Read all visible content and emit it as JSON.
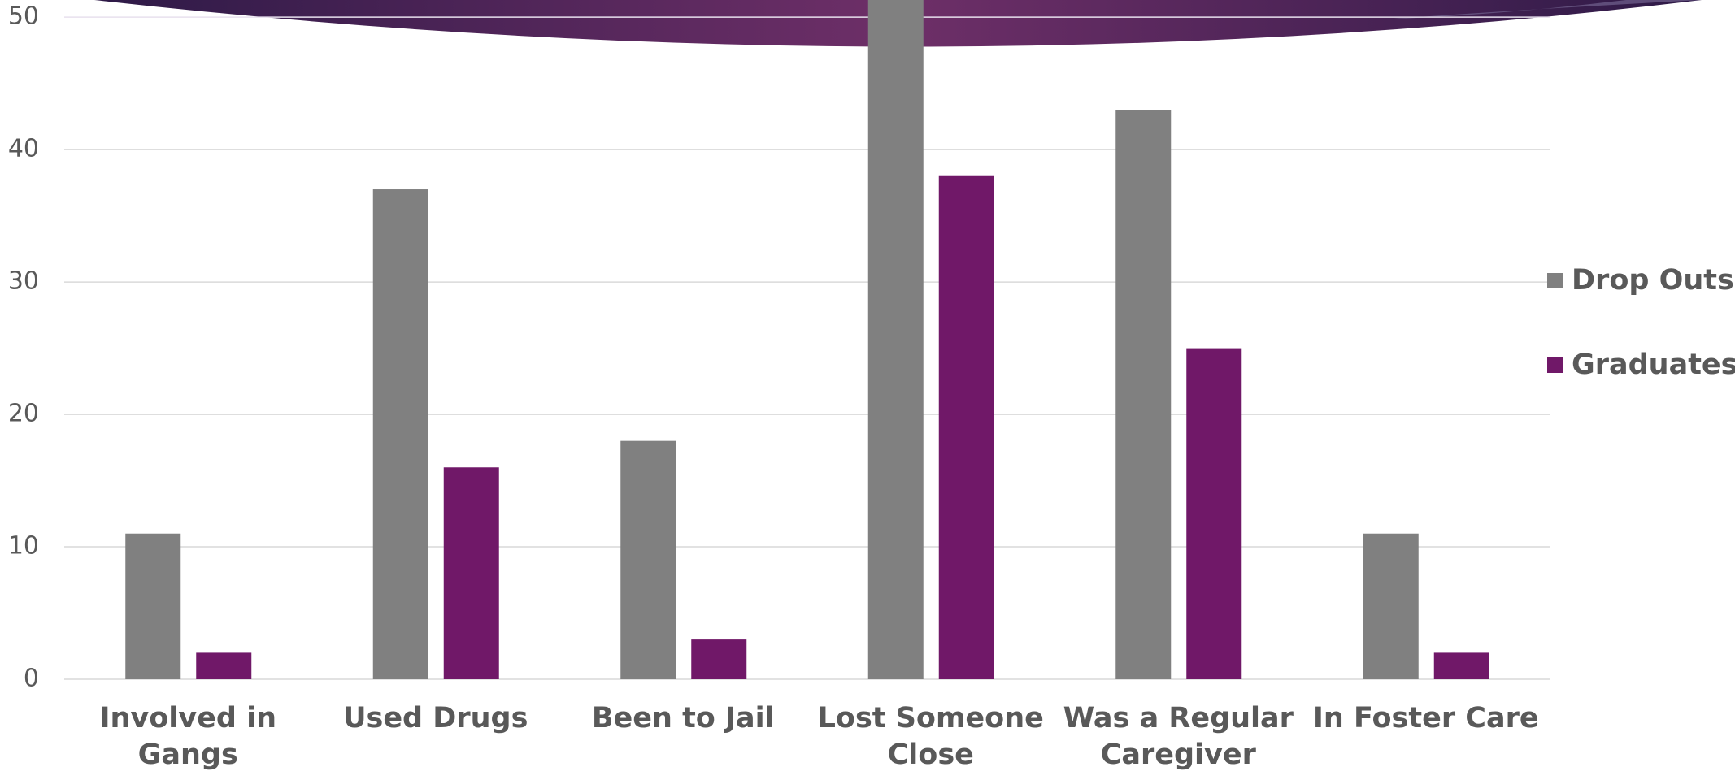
{
  "chart_data": {
    "type": "bar",
    "categories": [
      "Involved in Gangs",
      "Used Drugs",
      "Been to Jail",
      "Lost Someone Close",
      "Was a Regular Caregiver",
      "In Foster Care"
    ],
    "series": [
      {
        "name": "Drop Outs",
        "color": "#808080",
        "values": [
          11,
          37,
          18,
          53,
          43,
          11
        ]
      },
      {
        "name": "Graduates",
        "color": "#701868",
        "values": [
          2,
          16,
          3,
          38,
          25,
          2
        ]
      }
    ],
    "ylim": [
      0,
      51.3
    ],
    "yticks": [
      0,
      10,
      20,
      30,
      40,
      50
    ],
    "grid": true,
    "legend": "right"
  }
}
